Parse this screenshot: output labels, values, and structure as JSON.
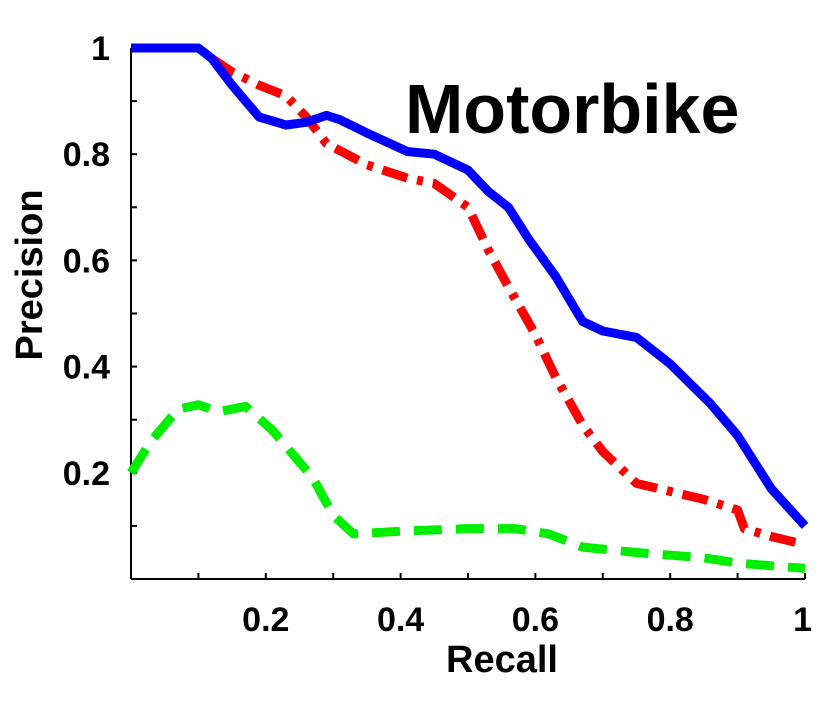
{
  "chart_data": {
    "type": "line",
    "title": "Motorbike",
    "xlabel": "Recall",
    "ylabel": "Precision",
    "xlim": [
      0,
      1
    ],
    "ylim": [
      0,
      1
    ],
    "xticks": [
      0.2,
      0.4,
      0.6,
      0.8,
      1
    ],
    "xtick_labels": [
      "0.2",
      "0.4",
      "0.6",
      "0.8",
      "1"
    ],
    "yticks": [
      0.2,
      0.4,
      0.6,
      0.8,
      1
    ],
    "ytick_labels": [
      "0.2",
      "0.4",
      "0.6",
      "0.8",
      "1"
    ],
    "grid": false,
    "legend": "none",
    "series": [
      {
        "color": "#0000ff",
        "style": "solid",
        "points": [
          [
            0,
            1
          ],
          [
            0.1,
            1
          ],
          [
            0.12,
            0.98
          ],
          [
            0.15,
            0.93
          ],
          [
            0.19,
            0.87
          ],
          [
            0.23,
            0.855
          ],
          [
            0.26,
            0.86
          ],
          [
            0.29,
            0.873
          ],
          [
            0.31,
            0.865
          ],
          [
            0.35,
            0.84
          ],
          [
            0.41,
            0.805
          ],
          [
            0.45,
            0.8
          ],
          [
            0.5,
            0.77
          ],
          [
            0.53,
            0.73
          ],
          [
            0.56,
            0.7
          ],
          [
            0.59,
            0.64
          ],
          [
            0.63,
            0.57
          ],
          [
            0.67,
            0.485
          ],
          [
            0.7,
            0.467
          ],
          [
            0.75,
            0.455
          ],
          [
            0.8,
            0.405
          ],
          [
            0.86,
            0.33
          ],
          [
            0.9,
            0.27
          ],
          [
            0.95,
            0.17
          ],
          [
            1,
            0.1
          ]
        ]
      },
      {
        "color": "#ff0000",
        "style": "dashdot",
        "points": [
          [
            0.12,
            0.98
          ],
          [
            0.15,
            0.955
          ],
          [
            0.19,
            0.93
          ],
          [
            0.23,
            0.91
          ],
          [
            0.26,
            0.87
          ],
          [
            0.29,
            0.82
          ],
          [
            0.35,
            0.78
          ],
          [
            0.41,
            0.755
          ],
          [
            0.45,
            0.745
          ],
          [
            0.5,
            0.7
          ],
          [
            0.53,
            0.62
          ],
          [
            0.56,
            0.55
          ],
          [
            0.6,
            0.46
          ],
          [
            0.63,
            0.38
          ],
          [
            0.67,
            0.29
          ],
          [
            0.7,
            0.24
          ],
          [
            0.75,
            0.18
          ],
          [
            0.8,
            0.165
          ],
          [
            0.85,
            0.15
          ],
          [
            0.9,
            0.13
          ],
          [
            0.91,
            0.095
          ],
          [
            0.95,
            0.08
          ],
          [
            1,
            0.065
          ]
        ]
      },
      {
        "color": "#00ee00",
        "style": "dashed",
        "points": [
          [
            0,
            0.2
          ],
          [
            0.03,
            0.26
          ],
          [
            0.07,
            0.32
          ],
          [
            0.1,
            0.328
          ],
          [
            0.13,
            0.315
          ],
          [
            0.17,
            0.325
          ],
          [
            0.21,
            0.28
          ],
          [
            0.27,
            0.19
          ],
          [
            0.3,
            0.12
          ],
          [
            0.33,
            0.085
          ],
          [
            0.4,
            0.09
          ],
          [
            0.5,
            0.095
          ],
          [
            0.57,
            0.095
          ],
          [
            0.62,
            0.085
          ],
          [
            0.67,
            0.06
          ],
          [
            0.75,
            0.05
          ],
          [
            0.85,
            0.04
          ],
          [
            0.9,
            0.03
          ],
          [
            1,
            0.02
          ]
        ]
      }
    ]
  }
}
